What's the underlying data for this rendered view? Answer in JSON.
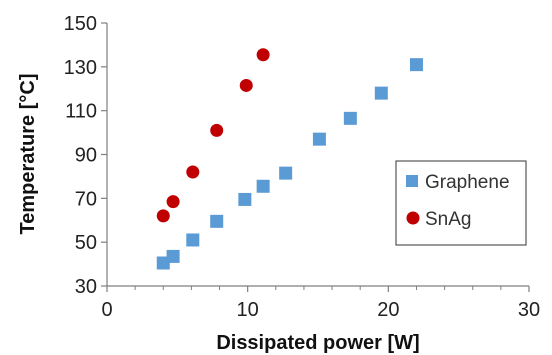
{
  "chart_data": {
    "type": "scatter",
    "title": "",
    "xlabel": "Dissipated power [W]",
    "ylabel": "Temperature [°C]",
    "xlim": [
      0,
      30
    ],
    "ylim": [
      30,
      150
    ],
    "xticks": [
      0,
      10,
      20,
      30
    ],
    "yticks": [
      30,
      50,
      70,
      90,
      110,
      130,
      150
    ],
    "grid": false,
    "legend_position": "right",
    "series": [
      {
        "name": "Graphene",
        "marker": "square",
        "color": "#5b9bd5",
        "x": [
          4.0,
          4.7,
          6.1,
          7.8,
          9.8,
          11.1,
          12.7,
          15.1,
          17.3,
          19.5,
          22.0
        ],
        "y": [
          40.5,
          43.5,
          51.0,
          59.5,
          69.5,
          75.5,
          81.5,
          97.0,
          106.5,
          118.0,
          131.0
        ]
      },
      {
        "name": "SnAg",
        "marker": "circle",
        "color": "#c00000",
        "x": [
          4.0,
          4.7,
          6.1,
          7.8,
          9.9,
          11.1
        ],
        "y": [
          62.0,
          68.5,
          82.0,
          101.0,
          121.5,
          135.5
        ]
      }
    ]
  }
}
